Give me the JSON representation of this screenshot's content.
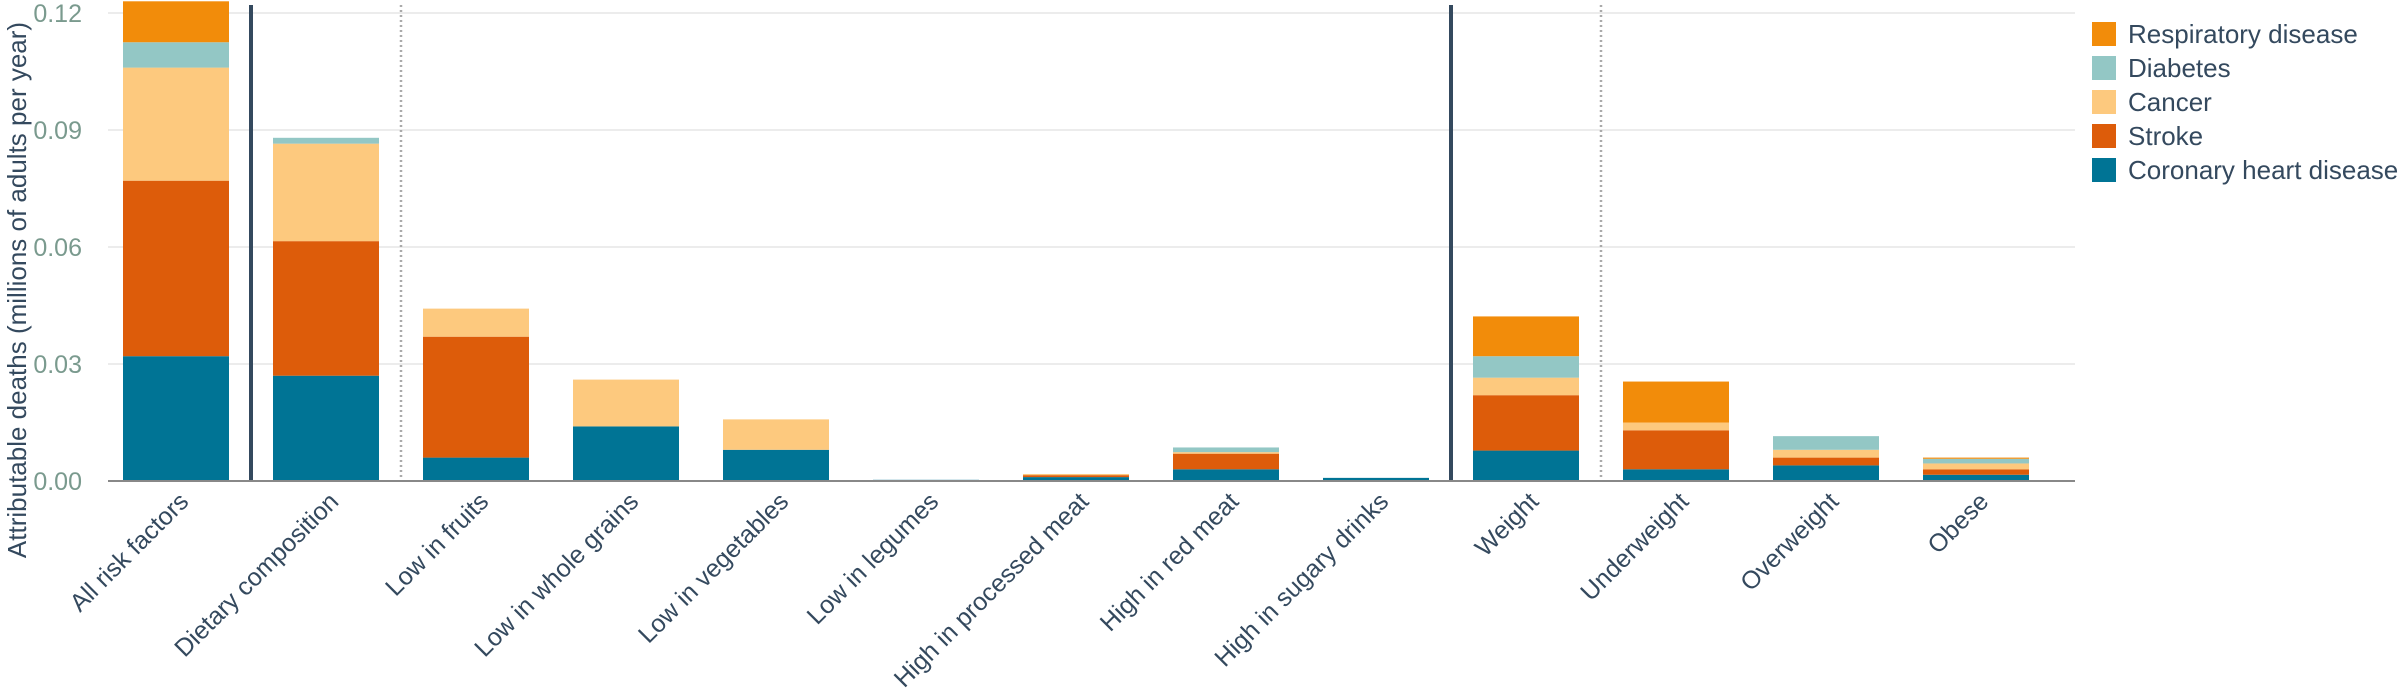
{
  "chart_data": {
    "type": "bar",
    "stacked": true,
    "ylabel": "Attributable deaths (millions of adults per year)",
    "xlabel": "",
    "ylim": [
      0,
      0.12
    ],
    "yticks": [
      "0.00",
      "0.03",
      "0.06",
      "0.09",
      "0.12"
    ],
    "ytick_values": [
      0,
      0.03,
      0.06,
      0.09,
      0.12
    ],
    "grid": true,
    "legend_position": "top-right",
    "categories": [
      "All risk factors",
      "Dietary composition",
      "Low in fruits",
      "Low in whole grains",
      "Low in vegetables",
      "Low in legumes",
      "High in processed meat",
      "High in red meat",
      "High in sugary drinks",
      "Weight",
      "Underweight",
      "Overweight",
      "Obese"
    ],
    "series": [
      {
        "name": "Coronary heart disease",
        "color": "#007495",
        "values": [
          0.032,
          0.027,
          0.006,
          0.014,
          0.008,
          0.0003,
          0.001,
          0.003,
          0.0008,
          0.0078,
          0.003,
          0.004,
          0.0016
        ]
      },
      {
        "name": "Stroke",
        "color": "#dd5c0a",
        "values": [
          0.045,
          0.0345,
          0.031,
          0.0,
          0.0,
          0.0,
          0.0005,
          0.004,
          0.0,
          0.0142,
          0.01,
          0.002,
          0.0014
        ]
      },
      {
        "name": "Cancer",
        "color": "#fdc97e",
        "values": [
          0.029,
          0.025,
          0.0072,
          0.012,
          0.0078,
          0.0,
          0.0003,
          0.0004,
          0.0,
          0.0045,
          0.002,
          0.002,
          0.0015
        ]
      },
      {
        "name": "Diabetes",
        "color": "#93c7c5",
        "values": [
          0.0065,
          0.0015,
          0.0,
          0.0,
          0.0,
          0.0,
          0.0,
          0.0012,
          0.0,
          0.0055,
          0.0,
          0.0035,
          0.0012
        ]
      },
      {
        "name": "Respiratory disease",
        "color": "#f28c0a",
        "values": [
          0.0105,
          0.0,
          0.0,
          0.0,
          0.0,
          0.0,
          0.0,
          0.0,
          0.0,
          0.0102,
          0.0105,
          0.0,
          0.0003
        ]
      }
    ],
    "legend_order": [
      "Respiratory disease",
      "Diabetes",
      "Cancer",
      "Stroke",
      "Coronary heart disease"
    ],
    "solid_separators_after": [
      "All risk factors",
      "High in sugary drinks"
    ],
    "dotted_separators_after": [
      "Dietary composition",
      "Weight"
    ],
    "colors": {
      "tick_text": "#7a9a8e",
      "label_text": "#34495e",
      "separator": "#34495e",
      "grid": "#e5e5e5",
      "axis": "#888888"
    }
  }
}
